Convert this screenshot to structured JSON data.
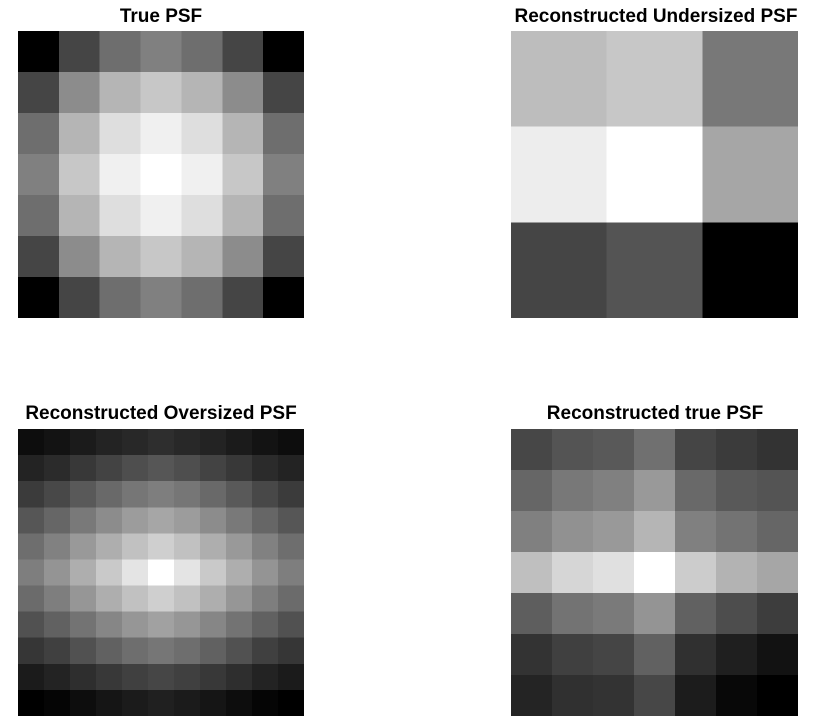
{
  "chart_data": [
    {
      "type": "heatmap",
      "title": "True PSF",
      "colormap": "gray",
      "z": [
        [
          0.0,
          0.27,
          0.43,
          0.5,
          0.43,
          0.27,
          0.0
        ],
        [
          0.27,
          0.55,
          0.71,
          0.78,
          0.71,
          0.55,
          0.27
        ],
        [
          0.43,
          0.71,
          0.87,
          0.94,
          0.87,
          0.71,
          0.43
        ],
        [
          0.5,
          0.78,
          0.94,
          1.0,
          0.94,
          0.78,
          0.5
        ],
        [
          0.43,
          0.71,
          0.87,
          0.94,
          0.87,
          0.71,
          0.43
        ],
        [
          0.27,
          0.55,
          0.71,
          0.78,
          0.71,
          0.55,
          0.27
        ],
        [
          0.0,
          0.27,
          0.43,
          0.5,
          0.43,
          0.27,
          0.0
        ]
      ]
    },
    {
      "type": "heatmap",
      "title": "Reconstructed Undersized PSF",
      "colormap": "gray",
      "z": [
        [
          0.74,
          0.78,
          0.47
        ],
        [
          0.93,
          1.0,
          0.65
        ],
        [
          0.27,
          0.33,
          0.0
        ]
      ]
    },
    {
      "type": "heatmap",
      "title": "Reconstructed Oversized PSF",
      "colormap": "gray",
      "z": [
        [
          0.1,
          0.12,
          0.15,
          0.18,
          0.2,
          0.22,
          0.2,
          0.18,
          0.15,
          0.12,
          0.1
        ],
        [
          0.18,
          0.21,
          0.26,
          0.3,
          0.34,
          0.37,
          0.34,
          0.3,
          0.26,
          0.21,
          0.18
        ],
        [
          0.27,
          0.32,
          0.38,
          0.44,
          0.49,
          0.52,
          0.49,
          0.44,
          0.38,
          0.32,
          0.27
        ],
        [
          0.37,
          0.43,
          0.5,
          0.57,
          0.63,
          0.67,
          0.63,
          0.57,
          0.5,
          0.43,
          0.37
        ],
        [
          0.46,
          0.53,
          0.62,
          0.7,
          0.77,
          0.82,
          0.77,
          0.7,
          0.62,
          0.53,
          0.46
        ],
        [
          0.52,
          0.6,
          0.7,
          0.8,
          0.9,
          1.0,
          0.9,
          0.8,
          0.7,
          0.6,
          0.52
        ],
        [
          0.45,
          0.52,
          0.61,
          0.7,
          0.77,
          0.82,
          0.77,
          0.7,
          0.61,
          0.52,
          0.45
        ],
        [
          0.35,
          0.41,
          0.48,
          0.55,
          0.61,
          0.65,
          0.61,
          0.55,
          0.48,
          0.41,
          0.35
        ],
        [
          0.25,
          0.29,
          0.35,
          0.41,
          0.46,
          0.49,
          0.46,
          0.41,
          0.35,
          0.29,
          0.25
        ],
        [
          0.15,
          0.18,
          0.22,
          0.26,
          0.29,
          0.31,
          0.29,
          0.26,
          0.22,
          0.18,
          0.15
        ],
        [
          0.05,
          0.07,
          0.1,
          0.13,
          0.15,
          0.17,
          0.15,
          0.13,
          0.1,
          0.07,
          0.05
        ]
      ]
    },
    {
      "type": "heatmap",
      "title": "Reconstructed true PSF",
      "colormap": "gray",
      "z": [
        [
          0.28,
          0.33,
          0.35,
          0.44,
          0.27,
          0.23,
          0.2
        ],
        [
          0.4,
          0.47,
          0.5,
          0.6,
          0.41,
          0.35,
          0.33
        ],
        [
          0.5,
          0.57,
          0.6,
          0.71,
          0.5,
          0.45,
          0.4
        ],
        [
          0.75,
          0.84,
          0.88,
          1.0,
          0.8,
          0.7,
          0.65
        ],
        [
          0.37,
          0.45,
          0.48,
          0.58,
          0.38,
          0.3,
          0.24
        ],
        [
          0.2,
          0.25,
          0.27,
          0.38,
          0.19,
          0.12,
          0.07
        ],
        [
          0.14,
          0.19,
          0.2,
          0.28,
          0.11,
          0.03,
          0.0
        ]
      ]
    }
  ]
}
